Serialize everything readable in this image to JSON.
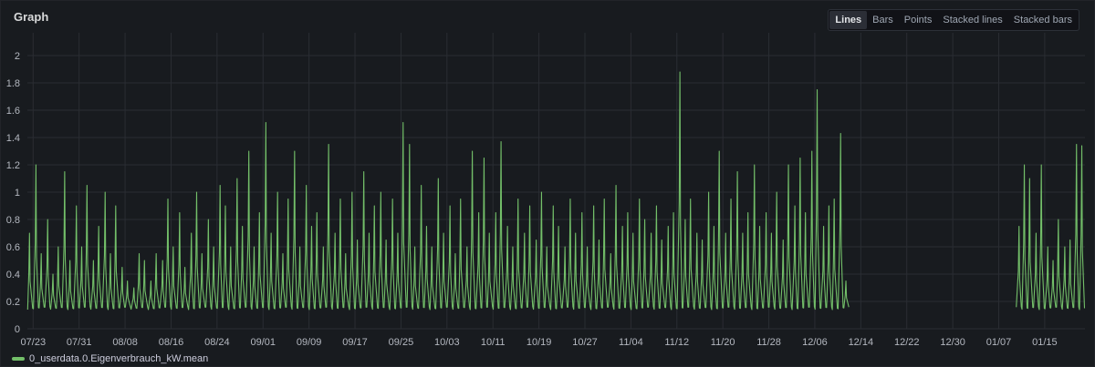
{
  "panel": {
    "title": "Graph",
    "view_modes": [
      "Lines",
      "Bars",
      "Points",
      "Stacked lines",
      "Stacked bars"
    ],
    "active_mode": "Lines"
  },
  "colors": {
    "series": "#73bf69",
    "background": "#181b1f",
    "grid": "#2a2d33"
  },
  "chart_data": {
    "type": "line",
    "ylim": [
      0,
      2.1
    ],
    "yticks": [
      0,
      0.2,
      0.4,
      0.6,
      0.8,
      1,
      1.2,
      1.4,
      1.6,
      1.8,
      2
    ],
    "xticks": [
      "07/23",
      "07/31",
      "08/08",
      "08/16",
      "08/24",
      "09/01",
      "09/09",
      "09/17",
      "09/25",
      "10/03",
      "10/11",
      "10/19",
      "10/27",
      "11/04",
      "11/12",
      "11/20",
      "11/28",
      "12/06",
      "12/14",
      "12/22",
      "12/30",
      "01/07",
      "01/15"
    ],
    "x_range": [
      "07/22",
      "01/22"
    ],
    "grid": true,
    "legend_position": "bottom-left",
    "series": [
      {
        "name": "0_userdata.0.Eigenverbrauch_kW.mean",
        "baseline": 0.16,
        "segments": [
          {
            "start": "07/22",
            "end": "12/11"
          },
          {
            "start": "01/10",
            "end": "01/22"
          }
        ],
        "daily_peaks": [
          [
            "07/22",
            0.7
          ],
          [
            "07/23",
            1.2
          ],
          [
            "07/24",
            0.55
          ],
          [
            "07/25",
            0.8
          ],
          [
            "07/26",
            0.4
          ],
          [
            "07/27",
            0.6
          ],
          [
            "07/28",
            1.15
          ],
          [
            "07/29",
            0.5
          ],
          [
            "07/30",
            0.9
          ],
          [
            "07/31",
            0.6
          ],
          [
            "08/01",
            1.05
          ],
          [
            "08/02",
            0.5
          ],
          [
            "08/03",
            0.75
          ],
          [
            "08/04",
            1.0
          ],
          [
            "08/05",
            0.55
          ],
          [
            "08/06",
            0.9
          ],
          [
            "08/07",
            0.45
          ],
          [
            "08/08",
            0.35
          ],
          [
            "08/09",
            0.3
          ],
          [
            "08/10",
            0.55
          ],
          [
            "08/11",
            0.5
          ],
          [
            "08/12",
            0.35
          ],
          [
            "08/13",
            0.55
          ],
          [
            "08/14",
            0.5
          ],
          [
            "08/15",
            0.95
          ],
          [
            "08/16",
            0.6
          ],
          [
            "08/17",
            0.85
          ],
          [
            "08/18",
            0.45
          ],
          [
            "08/19",
            0.7
          ],
          [
            "08/20",
            1.0
          ],
          [
            "08/21",
            0.55
          ],
          [
            "08/22",
            0.8
          ],
          [
            "08/23",
            0.6
          ],
          [
            "08/24",
            1.05
          ],
          [
            "08/25",
            0.9
          ],
          [
            "08/26",
            0.6
          ],
          [
            "08/27",
            1.1
          ],
          [
            "08/28",
            0.75
          ],
          [
            "08/29",
            1.3
          ],
          [
            "08/30",
            0.6
          ],
          [
            "08/31",
            0.85
          ],
          [
            "09/01",
            1.51
          ],
          [
            "09/02",
            0.7
          ],
          [
            "09/03",
            1.0
          ],
          [
            "09/04",
            0.55
          ],
          [
            "09/05",
            0.95
          ],
          [
            "09/06",
            1.3
          ],
          [
            "09/07",
            0.6
          ],
          [
            "09/08",
            1.05
          ],
          [
            "09/09",
            0.75
          ],
          [
            "09/10",
            0.85
          ],
          [
            "09/11",
            0.6
          ],
          [
            "09/12",
            1.35
          ],
          [
            "09/13",
            0.7
          ],
          [
            "09/14",
            0.95
          ],
          [
            "09/15",
            0.55
          ],
          [
            "09/16",
            1.0
          ],
          [
            "09/17",
            0.65
          ],
          [
            "09/18",
            1.15
          ],
          [
            "09/19",
            0.7
          ],
          [
            "09/20",
            0.9
          ],
          [
            "09/21",
            1.0
          ],
          [
            "09/22",
            0.65
          ],
          [
            "09/23",
            0.95
          ],
          [
            "09/24",
            0.7
          ],
          [
            "09/25",
            1.51
          ],
          [
            "09/26",
            1.35
          ],
          [
            "09/27",
            0.6
          ],
          [
            "09/28",
            1.05
          ],
          [
            "09/29",
            0.75
          ],
          [
            "09/30",
            0.6
          ],
          [
            "10/01",
            1.1
          ],
          [
            "10/02",
            0.7
          ],
          [
            "10/03",
            0.9
          ],
          [
            "10/04",
            0.55
          ],
          [
            "10/05",
            0.95
          ],
          [
            "10/06",
            0.6
          ],
          [
            "10/07",
            1.3
          ],
          [
            "10/08",
            0.85
          ],
          [
            "10/09",
            1.25
          ],
          [
            "10/10",
            0.7
          ],
          [
            "10/11",
            0.85
          ],
          [
            "10/12",
            1.37
          ],
          [
            "10/13",
            0.75
          ],
          [
            "10/14",
            0.6
          ],
          [
            "10/15",
            0.95
          ],
          [
            "10/16",
            0.7
          ],
          [
            "10/17",
            0.9
          ],
          [
            "10/18",
            0.65
          ],
          [
            "10/19",
            1.0
          ],
          [
            "10/20",
            0.6
          ],
          [
            "10/21",
            0.9
          ],
          [
            "10/22",
            0.75
          ],
          [
            "10/23",
            0.6
          ],
          [
            "10/24",
            0.95
          ],
          [
            "10/25",
            0.7
          ],
          [
            "10/26",
            0.85
          ],
          [
            "10/27",
            0.6
          ],
          [
            "10/28",
            0.9
          ],
          [
            "10/29",
            0.65
          ],
          [
            "10/30",
            0.95
          ],
          [
            "10/31",
            0.55
          ],
          [
            "11/01",
            1.05
          ],
          [
            "11/02",
            0.75
          ],
          [
            "11/03",
            0.85
          ],
          [
            "11/04",
            0.7
          ],
          [
            "11/05",
            0.95
          ],
          [
            "11/06",
            0.8
          ],
          [
            "11/07",
            0.7
          ],
          [
            "11/08",
            0.9
          ],
          [
            "11/09",
            0.65
          ],
          [
            "11/10",
            0.75
          ],
          [
            "11/11",
            0.85
          ],
          [
            "11/12",
            1.88
          ],
          [
            "11/13",
            0.8
          ],
          [
            "11/14",
            0.95
          ],
          [
            "11/15",
            0.7
          ],
          [
            "11/16",
            0.65
          ],
          [
            "11/17",
            1.0
          ],
          [
            "11/18",
            0.75
          ],
          [
            "11/19",
            1.3
          ],
          [
            "11/20",
            0.7
          ],
          [
            "11/21",
            0.95
          ],
          [
            "11/22",
            1.15
          ],
          [
            "11/23",
            0.7
          ],
          [
            "11/24",
            0.85
          ],
          [
            "11/25",
            1.2
          ],
          [
            "11/26",
            0.75
          ],
          [
            "11/27",
            0.85
          ],
          [
            "11/28",
            0.7
          ],
          [
            "11/29",
            1.0
          ],
          [
            "11/30",
            0.65
          ],
          [
            "12/01",
            1.2
          ],
          [
            "12/02",
            0.9
          ],
          [
            "12/03",
            1.25
          ],
          [
            "12/04",
            0.85
          ],
          [
            "12/05",
            1.3
          ],
          [
            "12/06",
            1.75
          ],
          [
            "12/07",
            0.75
          ],
          [
            "12/08",
            0.9
          ],
          [
            "12/09",
            0.95
          ],
          [
            "12/10",
            1.43
          ],
          [
            "12/11",
            0.35
          ],
          [
            "01/10",
            0.75
          ],
          [
            "01/11",
            1.2
          ],
          [
            "01/12",
            1.1
          ],
          [
            "01/13",
            0.7
          ],
          [
            "01/14",
            1.2
          ],
          [
            "01/15",
            0.6
          ],
          [
            "01/16",
            0.5
          ],
          [
            "01/17",
            0.8
          ],
          [
            "01/18",
            0.6
          ],
          [
            "01/19",
            0.65
          ],
          [
            "01/20",
            1.35
          ],
          [
            "01/21",
            1.34
          ]
        ]
      }
    ]
  }
}
